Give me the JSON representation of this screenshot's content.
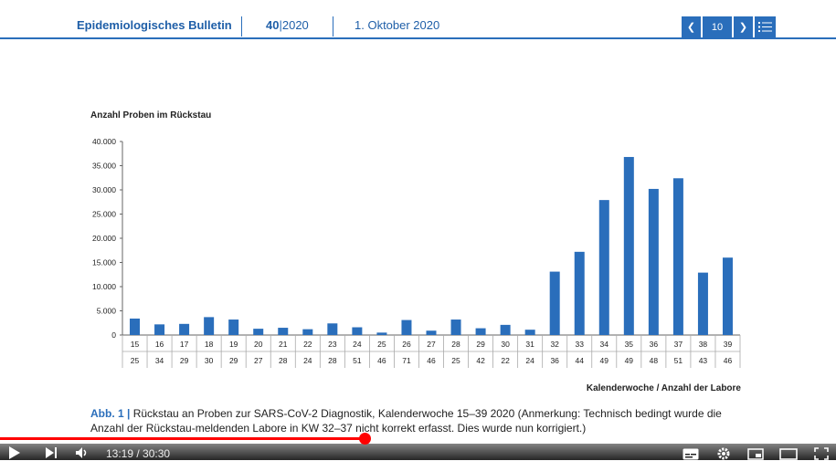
{
  "header": {
    "journal": "Epidemiologisches Bulletin",
    "issue_number": "40",
    "issue_year": "2020",
    "date": "1. Oktober 2020",
    "page_number": "10"
  },
  "chart_data": {
    "type": "bar",
    "title": "Anzahl Proben im Rückstau",
    "xlabel": "Kalenderwoche / Anzahl der Labore",
    "ylabel": "",
    "ylim": [
      0,
      40000
    ],
    "yticks": [
      "0",
      "5.000",
      "10.000",
      "15.000",
      "20.000",
      "25.000",
      "30.000",
      "35.000",
      "40.000"
    ],
    "categories": [
      "15",
      "16",
      "17",
      "18",
      "19",
      "20",
      "21",
      "22",
      "23",
      "24",
      "25",
      "26",
      "27",
      "28",
      "29",
      "30",
      "31",
      "32",
      "33",
      "34",
      "35",
      "36",
      "37",
      "38",
      "39"
    ],
    "labs": [
      "25",
      "34",
      "29",
      "30",
      "29",
      "27",
      "28",
      "24",
      "28",
      "51",
      "46",
      "71",
      "46",
      "25",
      "42",
      "22",
      "24",
      "36",
      "44",
      "49",
      "49",
      "48",
      "51",
      "43",
      "46"
    ],
    "values": [
      3400,
      2200,
      2300,
      3700,
      3200,
      1300,
      1500,
      1200,
      2400,
      1600,
      500,
      3100,
      900,
      3200,
      1400,
      2100,
      1100,
      13100,
      17200,
      27900,
      36800,
      30200,
      32400,
      12900,
      16000
    ],
    "bar_color": "#2a6ebb",
    "grid": false
  },
  "caption": {
    "label": "Abb. 1",
    "text": "Rückstau an Proben zur SARS-CoV-2 Diagnostik, Kalenderwoche 15–39 2020 (Anmerkung: Technisch bedingt wurde die Anzahl der Rückstau-meldenden Labore in KW 32–37 nicht korrekt erfasst. Dies wurde nun korrigiert.)"
  },
  "player": {
    "current_time": "13:19",
    "duration": "30:30",
    "time_display": "13:19 / 30:30",
    "progress_fraction": 0.4366,
    "accent": "#ff0000"
  }
}
